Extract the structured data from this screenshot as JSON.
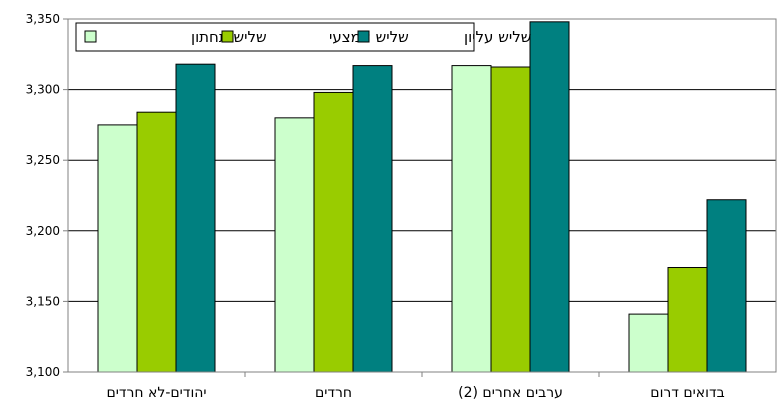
{
  "chart_data": {
    "type": "bar",
    "categories": [
      "יהודים-לא חרדים",
      "חרדים",
      "ערבים אחרים (2)",
      "בדואים דרום"
    ],
    "series": [
      {
        "name": "שליש תחתון",
        "color": "#ccffcc",
        "values": [
          3275,
          3280,
          3317,
          3141
        ]
      },
      {
        "name": "שליש אמצעי",
        "color": "#99cc00",
        "values": [
          3284,
          3298,
          3316,
          3174
        ]
      },
      {
        "name": "שליש עליון",
        "color": "#008080",
        "values": [
          3318,
          3317,
          3348,
          3222
        ]
      }
    ],
    "ylim": [
      3100,
      3350
    ],
    "yticks": [
      "3,100",
      "3,150",
      "3,200",
      "3,250",
      "3,300",
      "3,350"
    ],
    "grid": true,
    "legend_position": "top-left",
    "title": "",
    "xlabel": "",
    "ylabel": ""
  }
}
